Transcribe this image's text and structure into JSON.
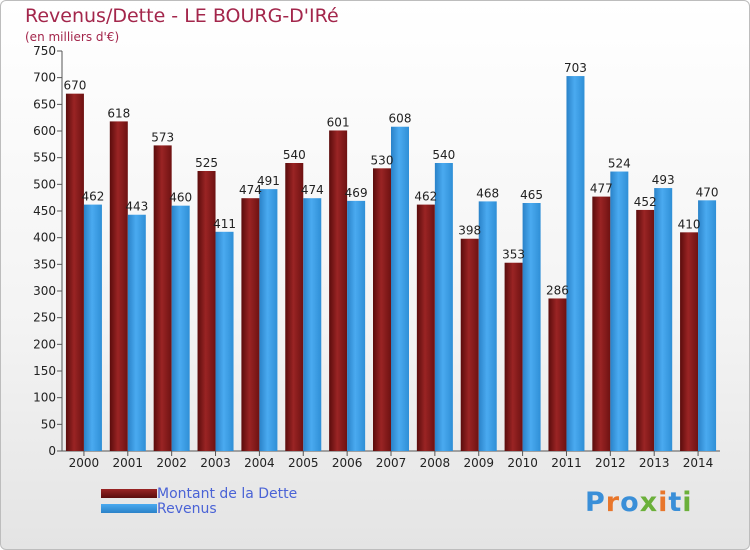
{
  "header": {
    "title": "Revenus/Dette - LE BOURG-D'IRé",
    "subtitle": "(en milliers d'€)"
  },
  "logo": {
    "text": "Proxiti",
    "colors": [
      "#3a8fd8",
      "#e8762b",
      "#3a8fd8",
      "#6bb03a",
      "#e8762b",
      "#3a8fd8",
      "#6bb03a"
    ]
  },
  "colors": {
    "dette": "#8b1a1a",
    "revenus": "#3c9ee2",
    "axis_text": "#222222",
    "title": "#a3264b"
  },
  "chart_data": {
    "type": "bar",
    "title": "Revenus/Dette - LE BOURG-D'IRé",
    "ylabel": "(en milliers d'€)",
    "categories": [
      "2000",
      "2001",
      "2002",
      "2003",
      "2004",
      "2005",
      "2006",
      "2007",
      "2008",
      "2009",
      "2010",
      "2011",
      "2012",
      "2013",
      "2014"
    ],
    "ylim": [
      0,
      750
    ],
    "yticks": [
      0,
      50,
      100,
      150,
      200,
      250,
      300,
      350,
      400,
      450,
      500,
      550,
      600,
      650,
      700,
      750
    ],
    "grid": false,
    "legend_position": "bottom-left",
    "series": [
      {
        "name": "Montant de la Dette",
        "color": "#8b1a1a",
        "values": [
          670,
          618,
          573,
          525,
          474,
          540,
          601,
          530,
          462,
          398,
          353,
          286,
          477,
          452,
          410
        ]
      },
      {
        "name": "Revenus",
        "color": "#3c9ee2",
        "values": [
          462,
          443,
          460,
          411,
          491,
          474,
          469,
          608,
          540,
          468,
          465,
          703,
          524,
          493,
          470
        ]
      }
    ]
  }
}
